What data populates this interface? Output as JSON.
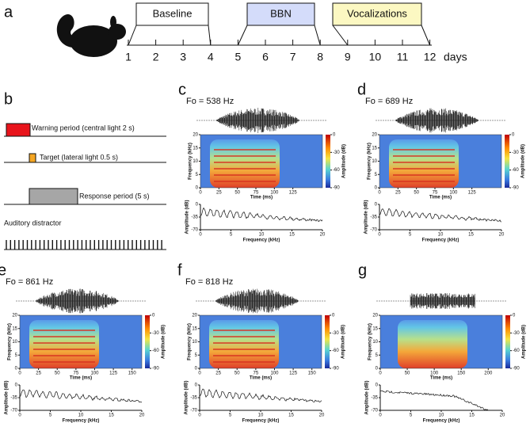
{
  "panels": {
    "a": {
      "label": "a",
      "phases": [
        "Baseline",
        "BBN",
        "Vocalizations"
      ],
      "days": [
        1,
        2,
        3,
        4,
        5,
        6,
        7,
        8,
        9,
        10,
        11,
        12
      ],
      "unit": "days"
    },
    "b": {
      "label": "b",
      "rows": [
        "Warning period (central light 2 s)",
        "Target (lateral light 0.5 s)",
        "Response period (5 s)",
        "Auditory distractor"
      ]
    },
    "spectra": [
      {
        "label": "c",
        "fo": "Fo = 538 Hz",
        "ylabel": "Frequency (kHz)",
        "xlabel": "Time (ms)",
        "cbar_label": "Amplitude (dB)",
        "ylim": [
          0,
          20
        ],
        "yticks": [
          0,
          5,
          10,
          15,
          20
        ],
        "xlim": [
          0,
          165
        ],
        "xticks": [
          0,
          25,
          50,
          75,
          100,
          125
        ],
        "cbar_lim": [
          -90,
          0
        ],
        "cbar_ticks": [
          0,
          -30,
          -60,
          -90
        ],
        "spectrum_ylabel": "Amplitude (dB)",
        "spectrum_xlabel": "Frequency (kHz)",
        "spectrum_ylim": [
          -70,
          0
        ],
        "spectrum_yticks": [
          0,
          -35,
          -70
        ],
        "spectrum_xlim": [
          0,
          20
        ],
        "spectrum_xticks": [
          0,
          5,
          10,
          15,
          20
        ]
      },
      {
        "label": "d",
        "fo": "Fo = 689 Hz",
        "ylabel": "Frequency (kHz)",
        "xlabel": "Time (ms)",
        "cbar_label": "Amplitude (dB)",
        "ylim": [
          0,
          20
        ],
        "yticks": [
          0,
          5,
          10,
          15,
          20
        ],
        "xlim": [
          0,
          165
        ],
        "xticks": [
          0,
          25,
          50,
          75,
          100,
          125
        ],
        "cbar_lim": [
          -90,
          0
        ],
        "cbar_ticks": [
          0,
          -30,
          -60,
          -90
        ],
        "spectrum_ylabel": "Amplitude (dB)",
        "spectrum_xlabel": "Frequency (kHz)",
        "spectrum_ylim": [
          -70,
          0
        ],
        "spectrum_yticks": [
          0,
          -35,
          -70
        ],
        "spectrum_xlim": [
          0,
          20
        ],
        "spectrum_xticks": [
          0,
          5,
          10,
          15,
          20
        ]
      },
      {
        "label": "e",
        "fo": "Fo = 861 Hz",
        "ylabel": "Frequency (kHz)",
        "xlabel": "Time (ms)",
        "cbar_label": "Amplitude (dB)",
        "ylim": [
          0,
          20
        ],
        "yticks": [
          0,
          5,
          10,
          15,
          20
        ],
        "xlim": [
          0,
          163
        ],
        "xticks": [
          0,
          25,
          50,
          75,
          100,
          125,
          150
        ],
        "cbar_lim": [
          -90,
          0
        ],
        "cbar_ticks": [
          0,
          -30,
          -60,
          -90
        ],
        "spectrum_ylabel": "Amplitude (dB)",
        "spectrum_xlabel": "Frequency (kHz)",
        "spectrum_ylim": [
          -70,
          0
        ],
        "spectrum_yticks": [
          0,
          -35,
          -70
        ],
        "spectrum_xlim": [
          0,
          20
        ],
        "spectrum_xticks": [
          0,
          5,
          10,
          15,
          20
        ]
      },
      {
        "label": "f",
        "fo": "Fo = 818 Hz",
        "ylabel": "Frequency (kHz)",
        "xlabel": "Time (ms)",
        "cbar_label": "Amplitude (dB)",
        "ylim": [
          0,
          20
        ],
        "yticks": [
          0,
          5,
          10,
          15,
          20
        ],
        "xlim": [
          0,
          163
        ],
        "xticks": [
          0,
          25,
          50,
          75,
          100,
          125,
          150
        ],
        "cbar_lim": [
          -90,
          0
        ],
        "cbar_ticks": [
          0,
          -30,
          -60,
          -90
        ],
        "spectrum_ylabel": "Amplitude (dB)",
        "spectrum_xlabel": "Frequency (kHz)",
        "spectrum_ylim": [
          -70,
          0
        ],
        "spectrum_yticks": [
          0,
          -35,
          -70
        ],
        "spectrum_xlim": [
          0,
          20
        ],
        "spectrum_xticks": [
          0,
          5,
          10,
          15,
          20
        ]
      },
      {
        "label": "g",
        "ylabel": "Frequency (kHz)",
        "xlabel": "Time (ms)",
        "cbar_label": "Amplitude (dB)",
        "ylim": [
          0,
          20
        ],
        "yticks": [
          0,
          5,
          10,
          15,
          20
        ],
        "xlim": [
          0,
          226
        ],
        "xticks": [
          0,
          50,
          100,
          150,
          200
        ],
        "cbar_lim": [
          -90,
          0
        ],
        "cbar_ticks": [
          0,
          -30,
          -60,
          -90
        ],
        "spectrum_ylabel": "Amplitude (dB)",
        "spectrum_xlabel": "Frequency (kHz)",
        "spectrum_ylim": [
          -70,
          0
        ],
        "spectrum_yticks": [
          0,
          -35,
          -70
        ],
        "spectrum_xlim": [
          0,
          20
        ],
        "spectrum_xticks": [
          0,
          5,
          10,
          15,
          20
        ]
      }
    ]
  }
}
